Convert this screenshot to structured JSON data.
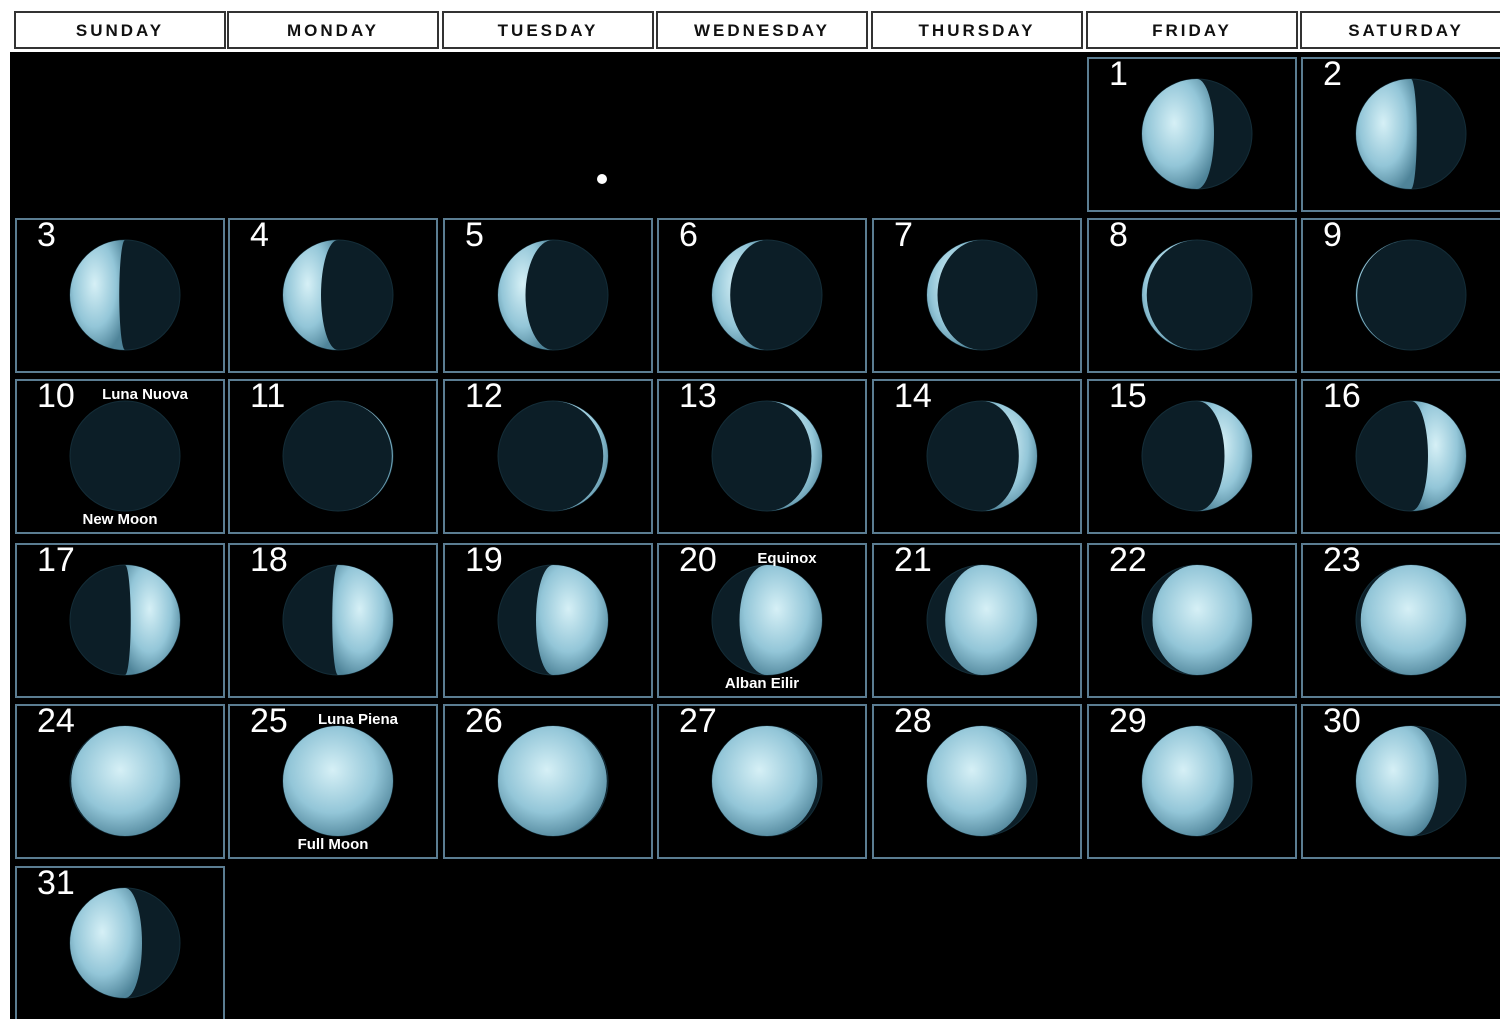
{
  "weekdays": [
    "SUNDAY",
    "MONDAY",
    "TUESDAY",
    "WEDNESDAY",
    "THURSDAY",
    "FRIDAY",
    "SATURDAY"
  ],
  "weeks": [
    [
      null,
      null,
      null,
      null,
      null,
      {
        "day": 1
      },
      {
        "day": 2
      }
    ],
    [
      {
        "day": 3
      },
      {
        "day": 4
      },
      {
        "day": 5
      },
      {
        "day": 6
      },
      {
        "day": 7
      },
      {
        "day": 8
      },
      {
        "day": 9
      }
    ],
    [
      {
        "day": 10,
        "top": "Luna Nuova",
        "bottom": "New Moon"
      },
      {
        "day": 11
      },
      {
        "day": 12
      },
      {
        "day": 13
      },
      {
        "day": 14
      },
      {
        "day": 15
      },
      {
        "day": 16
      }
    ],
    [
      {
        "day": 17
      },
      {
        "day": 18
      },
      {
        "day": 19
      },
      {
        "day": 20,
        "top": "Equinox",
        "bottom": "Alban Eilir"
      },
      {
        "day": 21
      },
      {
        "day": 22
      },
      {
        "day": 23
      }
    ],
    [
      {
        "day": 24
      },
      {
        "day": 25,
        "top": "Luna Piena",
        "bottom": "Full Moon"
      },
      {
        "day": 26
      },
      {
        "day": 27
      },
      {
        "day": 28
      },
      {
        "day": 29
      },
      {
        "day": 30
      }
    ],
    [
      {
        "day": 31
      },
      null,
      null,
      null,
      null,
      null,
      null
    ]
  ]
}
